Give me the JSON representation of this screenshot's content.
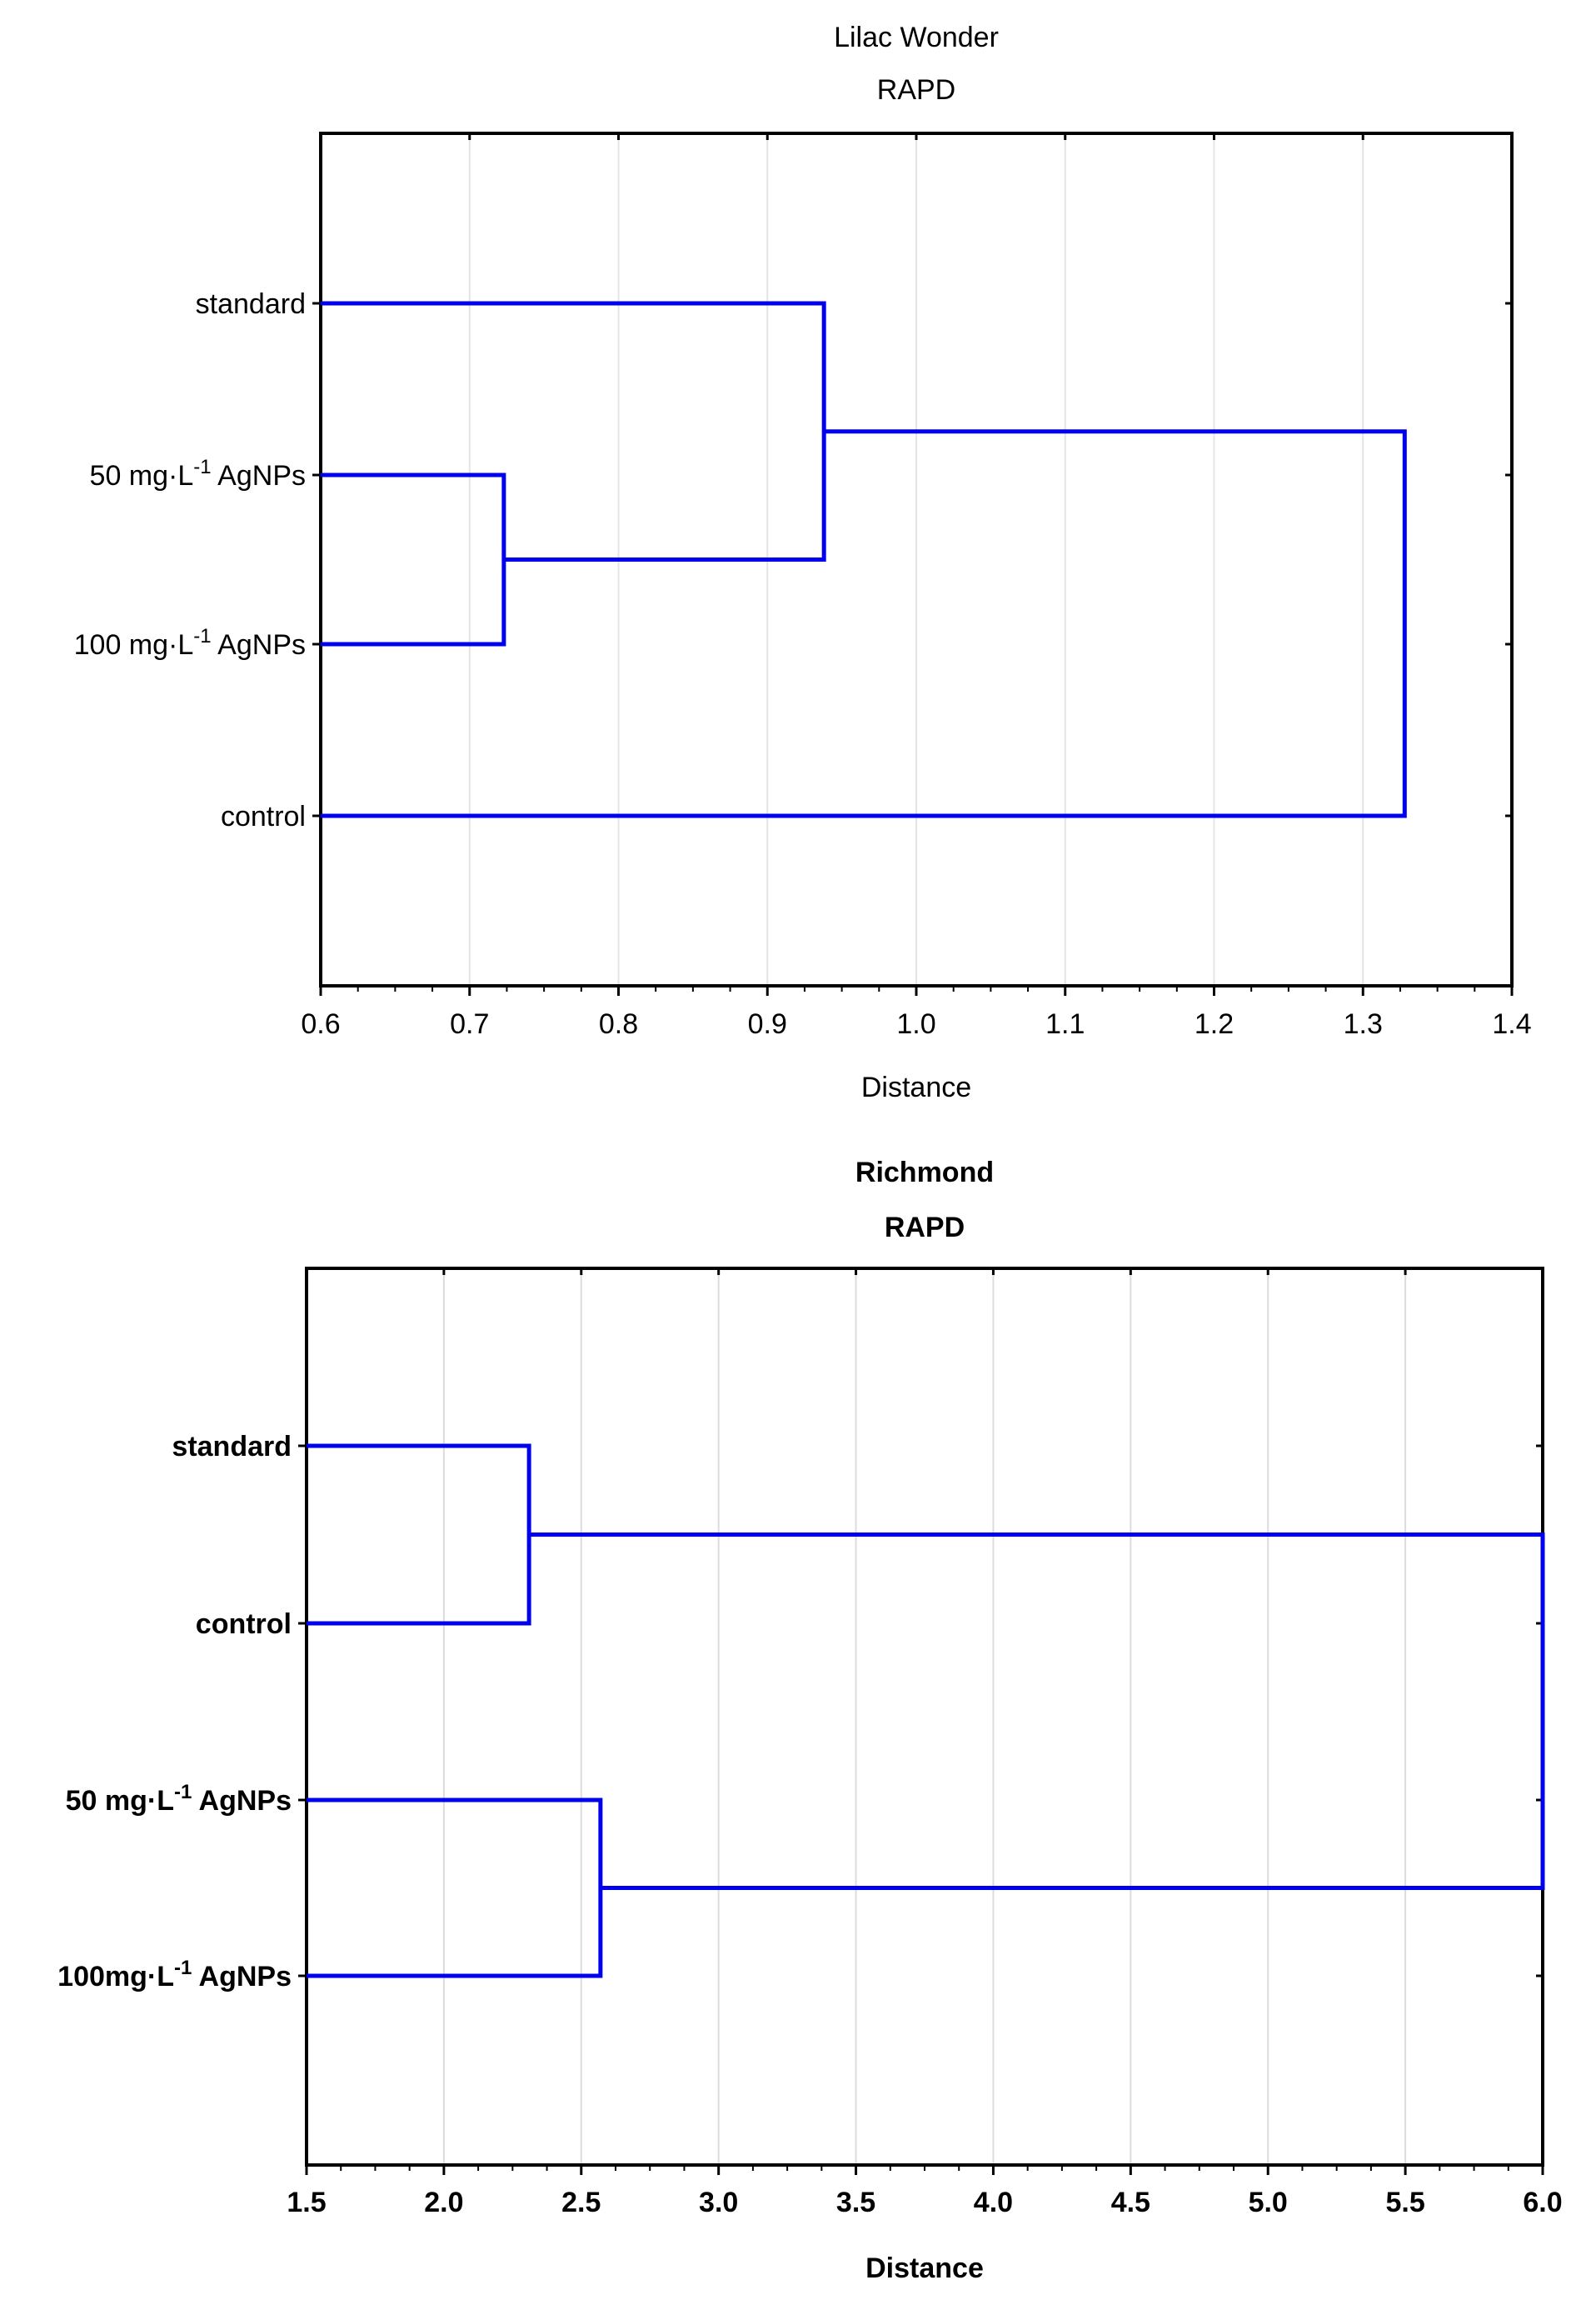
{
  "chart_data": [
    {
      "type": "dendrogram",
      "title": "Lilac Wonder",
      "subtitle": "RAPD",
      "xlabel": "Distance",
      "xlim": [
        0.6,
        1.4
      ],
      "xticks": [
        "0.6",
        "0.7",
        "0.8",
        "0.9",
        "1.0",
        "1.1",
        "1.2",
        "1.3",
        "1.4"
      ],
      "grid": true,
      "leaves": [
        {
          "main": "standard"
        },
        {
          "main": "50 mg·L",
          "sup": "-1",
          "suffix": " AgNPs"
        },
        {
          "main": "100 mg·L",
          "sup": "-1",
          "suffix": " AgNPs"
        },
        {
          "main": "control"
        }
      ],
      "merges": [
        {
          "a": "L1",
          "b": "L2",
          "height": 0.723
        },
        {
          "a": "L0",
          "b": "M0",
          "height": 0.938
        },
        {
          "a": "M1",
          "b": "L3",
          "height": 1.328
        }
      ],
      "line_color": "#0000ee"
    },
    {
      "type": "dendrogram",
      "title": "Richmond",
      "subtitle": "RAPD",
      "xlabel": "Distance",
      "xlim": [
        1.5,
        6.0
      ],
      "xticks": [
        "1.5",
        "2.0",
        "2.5",
        "3.0",
        "3.5",
        "4.0",
        "4.5",
        "5.0",
        "5.5",
        "6.0"
      ],
      "grid": true,
      "leaves": [
        {
          "main": "standard"
        },
        {
          "main": "control"
        },
        {
          "main": "50 mg·L",
          "sup": "-1",
          "suffix": " AgNPs"
        },
        {
          "main": "100mg·L",
          "sup": "-1",
          "suffix": " AgNPs"
        }
      ],
      "merges": [
        {
          "a": "L0",
          "b": "L1",
          "height": 2.31
        },
        {
          "a": "L2",
          "b": "L3",
          "height": 2.57
        },
        {
          "a": "M0",
          "b": "M1",
          "height": 6.0
        }
      ],
      "line_color": "#0000ee"
    }
  ]
}
